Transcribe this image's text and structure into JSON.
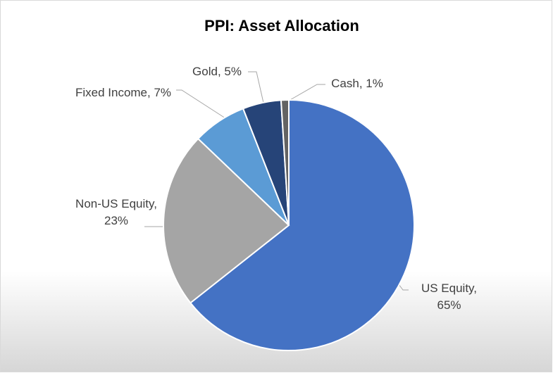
{
  "chart_data": {
    "type": "pie",
    "title": "PPI: Asset Allocation",
    "values": [
      65,
      23,
      7,
      5,
      1
    ],
    "value_labels": [
      "US Equity, 65%",
      "Non-US Equity, 23%",
      "Fixed Income, 7%",
      "Gold, 5%",
      "Cash, 1%"
    ],
    "colors": [
      "#4472c4",
      "#a5a5a5",
      "#5b9bd5",
      "#264478",
      "#636363"
    ]
  }
}
